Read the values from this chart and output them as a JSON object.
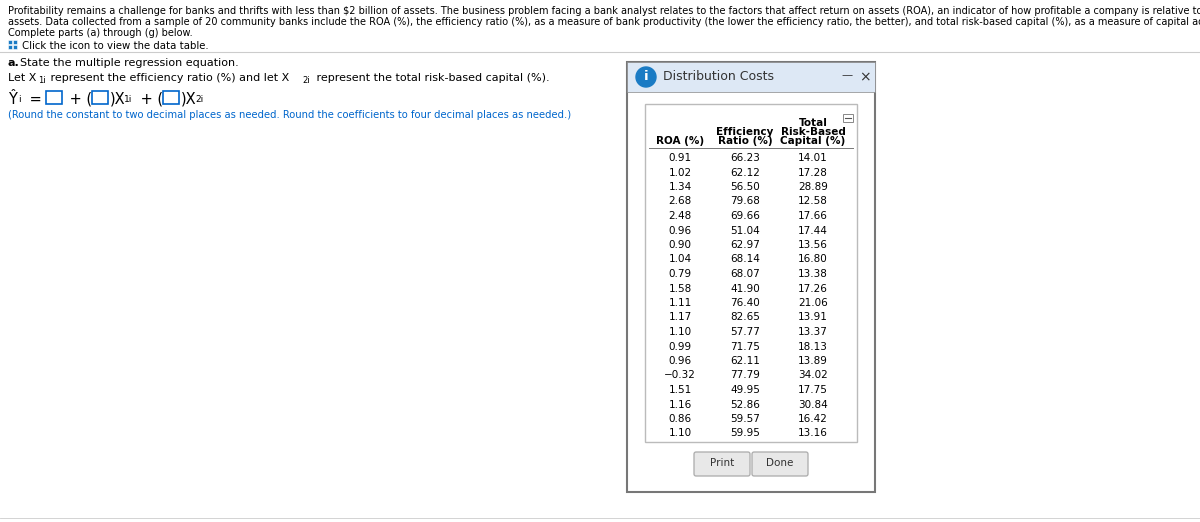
{
  "para1": "Profitability remains a challenge for banks and thrifts with less than $2 billion of assets. The business problem facing a bank analyst relates to the factors that affect return on assets (ROA), an indicator of how profitable a company is relative to its total",
  "para2": "assets. Data collected from a sample of 20 community banks include the ROA (%), the efficiency ratio (%), as a measure of bank productivity (the lower the efficiency ratio, the better), and total risk-based capital (%), as a measure of capital adequacy.",
  "para3": "Complete parts (a) through (g) below.",
  "click_text": "Click the icon to view the data table.",
  "section_a": "State the multiple regression equation.",
  "let_text": "Let X",
  "let_text2": " represent the efficiency ratio (%) and let X",
  "let_text3": " represent the total risk-based capital (%).",
  "round_note": "(Round the constant to two decimal places as needed. Round the coefficients to four decimal places as needed.)",
  "dialog_title": "Distribution Costs",
  "col1_header": "ROA (%)",
  "col2_header_line1": "Efficiency",
  "col2_header_line2": "Ratio (%)",
  "col3_header_line0": "Total",
  "col3_header_line1": "Risk-Based",
  "col3_header_line2": "Capital (%)",
  "data_rows": [
    [
      0.91,
      66.23,
      14.01
    ],
    [
      1.02,
      62.12,
      17.28
    ],
    [
      1.34,
      56.5,
      28.89
    ],
    [
      2.68,
      79.68,
      12.58
    ],
    [
      2.48,
      69.66,
      17.66
    ],
    [
      0.96,
      51.04,
      17.44
    ],
    [
      0.9,
      62.97,
      13.56
    ],
    [
      1.04,
      68.14,
      16.8
    ],
    [
      0.79,
      68.07,
      13.38
    ],
    [
      1.58,
      41.9,
      17.26
    ],
    [
      1.11,
      76.4,
      21.06
    ],
    [
      1.17,
      82.65,
      13.91
    ],
    [
      1.1,
      57.77,
      13.37
    ],
    [
      0.99,
      71.75,
      18.13
    ],
    [
      0.96,
      62.11,
      13.89
    ],
    [
      -0.32,
      77.79,
      34.02
    ],
    [
      1.51,
      49.95,
      17.75
    ],
    [
      1.16,
      52.86,
      30.84
    ],
    [
      0.86,
      59.57,
      16.42
    ],
    [
      1.1,
      59.95,
      13.16
    ]
  ],
  "blue_color": "#0066cc",
  "icon_blue": "#1a7bc4",
  "titlebar_bg": "#dde8f5",
  "dialog_border": "#888888",
  "table_border": "#cccccc",
  "btn_bg": "#e8e8e8",
  "btn_border": "#aaaaaa",
  "separator_color": "#cccccc",
  "text_black": "#1a1a1a",
  "fontsize_para": 7.0,
  "fontsize_section": 8.0,
  "fontsize_eq": 10.5,
  "fontsize_table": 7.5,
  "fontsize_title": 9.0
}
